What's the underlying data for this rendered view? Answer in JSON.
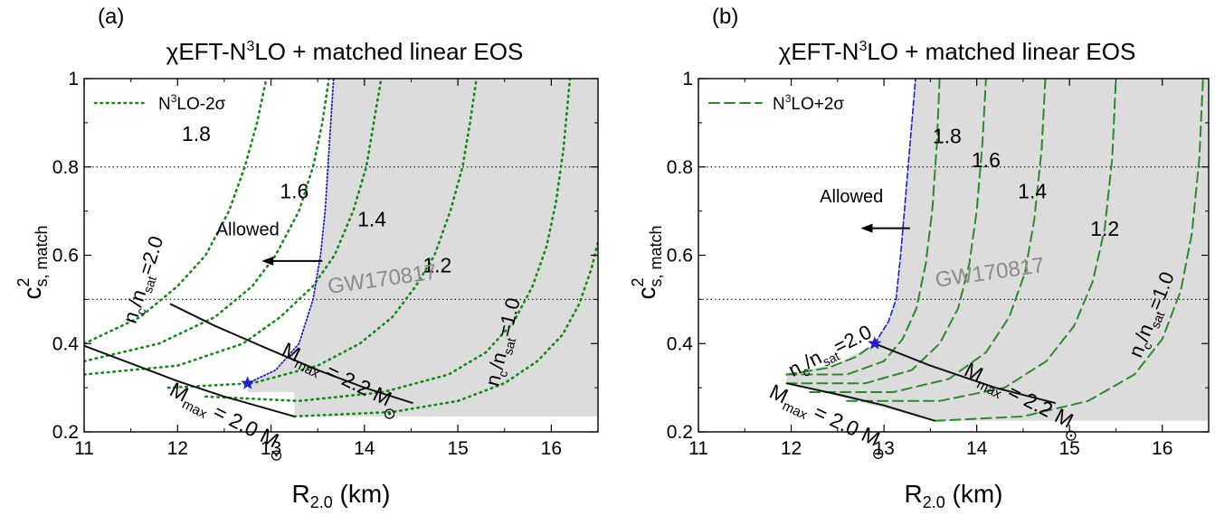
{
  "chart_data": [
    {
      "type": "line",
      "panel_label": "(a)",
      "title_pre": "χEFT-N",
      "title_sup": "3",
      "title_post": "LO + matched linear EOS",
      "xlabel_main": "R",
      "xlabel_sub": "2.0",
      "xlabel_unit": " (km)",
      "ylabel_main": "c",
      "ylabel_sup": "2",
      "ylabel_sub": "s, match",
      "xlim": [
        11,
        16.5
      ],
      "ylim": [
        0.2,
        1.0
      ],
      "xticks": [
        "11",
        "12",
        "13",
        "14",
        "15",
        "16"
      ],
      "xtick_values": [
        11,
        12,
        13,
        14,
        15,
        16
      ],
      "yticks": [
        "0.2",
        "0.4",
        "0.6",
        "0.8",
        "1"
      ],
      "ytick_values": [
        0.2,
        0.4,
        0.6,
        0.8,
        1.0
      ],
      "hlines": [
        0.5,
        0.8
      ],
      "legend": {
        "pre": "N",
        "sup": "3",
        "post": "LO-2σ",
        "style": "dotted",
        "position": "top-left"
      },
      "excluded_region_label": "GW170817",
      "allowed_label": "Allowed",
      "star": {
        "x": 12.75,
        "y": 0.31
      },
      "boundary_curve": [
        [
          12.75,
          0.31
        ],
        [
          13.05,
          0.34
        ],
        [
          13.3,
          0.4
        ],
        [
          13.45,
          0.5
        ],
        [
          13.53,
          0.6
        ],
        [
          13.58,
          0.7
        ],
        [
          13.61,
          0.8
        ],
        [
          13.64,
          0.9
        ],
        [
          13.67,
          1.0
        ]
      ],
      "shaded_region": [
        [
          12.75,
          0.31
        ],
        [
          13.05,
          0.34
        ],
        [
          13.3,
          0.4
        ],
        [
          13.45,
          0.5
        ],
        [
          13.53,
          0.6
        ],
        [
          13.58,
          0.7
        ],
        [
          13.61,
          0.8
        ],
        [
          13.64,
          0.9
        ],
        [
          13.67,
          1.0
        ],
        [
          16.5,
          1.0
        ],
        [
          16.5,
          0.235
        ],
        [
          13.25,
          0.235
        ],
        [
          13.25,
          0.29
        ],
        [
          12.75,
          0.29
        ]
      ],
      "nc_curves": [
        {
          "label": "2.0",
          "points": [
            [
              11.0,
              0.4
            ],
            [
              11.6,
              0.46
            ],
            [
              12.0,
              0.53
            ],
            [
              12.3,
              0.6
            ],
            [
              12.55,
              0.7
            ],
            [
              12.72,
              0.8
            ],
            [
              12.85,
              0.9
            ],
            [
              12.95,
              1.0
            ]
          ]
        },
        {
          "label": "1.8",
          "points": [
            [
              11.0,
              0.36
            ],
            [
              11.8,
              0.4
            ],
            [
              12.4,
              0.46
            ],
            [
              12.8,
              0.53
            ],
            [
              13.05,
              0.6
            ],
            [
              13.3,
              0.7
            ],
            [
              13.45,
              0.8
            ],
            [
              13.55,
              0.9
            ],
            [
              13.62,
              1.0
            ]
          ]
        },
        {
          "label": "1.6",
          "points": [
            [
              11.0,
              0.33
            ],
            [
              12.0,
              0.35
            ],
            [
              12.7,
              0.4
            ],
            [
              13.1,
              0.46
            ],
            [
              13.45,
              0.53
            ],
            [
              13.68,
              0.6
            ],
            [
              13.88,
              0.7
            ],
            [
              14.02,
              0.8
            ],
            [
              14.1,
              0.9
            ],
            [
              14.18,
              1.0
            ]
          ]
        },
        {
          "label": "1.4",
          "points": [
            [
              11.9,
              0.3
            ],
            [
              12.8,
              0.31
            ],
            [
              13.5,
              0.35
            ],
            [
              13.95,
              0.4
            ],
            [
              14.3,
              0.46
            ],
            [
              14.55,
              0.53
            ],
            [
              14.75,
              0.6
            ],
            [
              14.92,
              0.7
            ],
            [
              15.05,
              0.8
            ],
            [
              15.13,
              0.9
            ],
            [
              15.2,
              1.0
            ]
          ]
        },
        {
          "label": "1.2",
          "points": [
            [
              12.3,
              0.28
            ],
            [
              13.3,
              0.27
            ],
            [
              14.2,
              0.29
            ],
            [
              14.9,
              0.33
            ],
            [
              15.3,
              0.38
            ],
            [
              15.6,
              0.45
            ],
            [
              15.8,
              0.53
            ],
            [
              15.95,
              0.62
            ],
            [
              16.05,
              0.72
            ],
            [
              16.13,
              0.84
            ],
            [
              16.2,
              1.0
            ]
          ]
        },
        {
          "label": "1.0",
          "points": [
            [
              13.25,
              0.235
            ],
            [
              14.3,
              0.245
            ],
            [
              15.0,
              0.27
            ],
            [
              15.5,
              0.31
            ],
            [
              15.85,
              0.36
            ],
            [
              16.12,
              0.42
            ],
            [
              16.3,
              0.49
            ],
            [
              16.43,
              0.57
            ],
            [
              16.5,
              0.63
            ]
          ]
        }
      ],
      "curve_labels": [
        {
          "text": "1.8",
          "x": 12.2,
          "y": 0.875
        },
        {
          "text": "1.6",
          "x": 13.25,
          "y": 0.745
        },
        {
          "text": "1.4",
          "x": 14.08,
          "y": 0.682
        },
        {
          "text": "1.2",
          "x": 14.78,
          "y": 0.577
        }
      ],
      "nc_label_2": {
        "pre": "n",
        "sub1": "c",
        "mid": "/n",
        "sub2": "sat",
        "post": "=2.0",
        "x": 11.7,
        "y": 0.54,
        "angle": -72
      },
      "nc_label_1": {
        "pre": "n",
        "sub1": "c",
        "mid": "/n",
        "sub2": "sat",
        "post": "=1.0",
        "x": 15.55,
        "y": 0.4,
        "angle": -76
      },
      "mmax_curves": [
        {
          "pre": "M",
          "sub": "max",
          "post": " = 2.0 M",
          "points": [
            [
              11.0,
              0.395
            ],
            [
              11.5,
              0.355
            ],
            [
              12.0,
              0.315
            ],
            [
              12.5,
              0.28
            ],
            [
              13.0,
              0.25
            ],
            [
              13.25,
              0.235
            ]
          ],
          "label_x": 11.9,
          "label_y": 0.285,
          "angle": 27
        },
        {
          "pre": "M",
          "sub": "max",
          "post": " = 2.2 M",
          "points": [
            [
              11.92,
              0.49
            ],
            [
              12.4,
              0.44
            ],
            [
              13.0,
              0.385
            ],
            [
              13.5,
              0.34
            ],
            [
              14.0,
              0.3
            ],
            [
              14.52,
              0.265
            ]
          ],
          "label_x": 13.1,
          "label_y": 0.375,
          "angle": 26
        }
      ]
    },
    {
      "type": "line",
      "panel_label": "(b)",
      "title_pre": "χEFT-N",
      "title_sup": "3",
      "title_post": "LO + matched linear EOS",
      "xlabel_main": "R",
      "xlabel_sub": "2.0",
      "xlabel_unit": " (km)",
      "ylabel_main": "c",
      "ylabel_sup": "2",
      "ylabel_sub": "s, match",
      "xlim": [
        11,
        16.5
      ],
      "ylim": [
        0.2,
        1.0
      ],
      "xticks": [
        "11",
        "12",
        "13",
        "14",
        "15",
        "16"
      ],
      "xtick_values": [
        11,
        12,
        13,
        14,
        15,
        16
      ],
      "yticks": [
        "0.2",
        "0.4",
        "0.6",
        "0.8",
        "1"
      ],
      "ytick_values": [
        0.2,
        0.4,
        0.6,
        0.8,
        1.0
      ],
      "hlines": [
        0.5,
        0.8
      ],
      "legend": {
        "pre": "N",
        "sup": "3",
        "post": "LO+2σ",
        "style": "dashed",
        "position": "top-left"
      },
      "excluded_region_label": "GW170817",
      "allowed_label": "Allowed",
      "star": {
        "x": 12.9,
        "y": 0.4
      },
      "boundary_curve": [
        [
          12.9,
          0.4
        ],
        [
          13.05,
          0.45
        ],
        [
          13.13,
          0.5
        ],
        [
          13.18,
          0.6
        ],
        [
          13.22,
          0.7
        ],
        [
          13.26,
          0.8
        ],
        [
          13.3,
          0.9
        ],
        [
          13.34,
          1.0
        ]
      ],
      "shaded_region": [
        [
          11.95,
          0.33
        ],
        [
          12.5,
          0.355
        ],
        [
          12.9,
          0.4
        ],
        [
          13.05,
          0.45
        ],
        [
          13.13,
          0.5
        ],
        [
          13.18,
          0.6
        ],
        [
          13.22,
          0.7
        ],
        [
          13.26,
          0.8
        ],
        [
          13.3,
          0.9
        ],
        [
          13.34,
          1.0
        ],
        [
          16.5,
          1.0
        ],
        [
          16.5,
          0.225
        ],
        [
          13.55,
          0.225
        ],
        [
          11.95,
          0.31
        ]
      ],
      "nc_curves": [
        {
          "label": "2.0",
          "points": [
            [
              11.95,
              0.33
            ],
            [
              12.4,
              0.345
            ],
            [
              12.7,
              0.37
            ],
            [
              12.9,
              0.4
            ]
          ]
        },
        {
          "label": "1.8",
          "points": [
            [
              11.95,
              0.33
            ],
            [
              12.6,
              0.33
            ],
            [
              13.0,
              0.36
            ],
            [
              13.2,
              0.41
            ],
            [
              13.35,
              0.48
            ],
            [
              13.45,
              0.58
            ],
            [
              13.52,
              0.7
            ],
            [
              13.57,
              0.85
            ],
            [
              13.6,
              1.0
            ]
          ]
        },
        {
          "label": "1.6",
          "points": [
            [
              11.95,
              0.31
            ],
            [
              12.8,
              0.31
            ],
            [
              13.3,
              0.34
            ],
            [
              13.6,
              0.4
            ],
            [
              13.8,
              0.48
            ],
            [
              13.92,
              0.58
            ],
            [
              14.0,
              0.7
            ],
            [
              14.06,
              0.85
            ],
            [
              14.1,
              1.0
            ]
          ]
        },
        {
          "label": "1.4",
          "points": [
            [
              12.2,
              0.29
            ],
            [
              13.1,
              0.29
            ],
            [
              13.7,
              0.32
            ],
            [
              14.1,
              0.38
            ],
            [
              14.35,
              0.46
            ],
            [
              14.52,
              0.56
            ],
            [
              14.62,
              0.68
            ],
            [
              14.7,
              0.84
            ],
            [
              14.74,
              1.0
            ]
          ]
        },
        {
          "label": "1.2",
          "points": [
            [
              12.6,
              0.27
            ],
            [
              13.6,
              0.27
            ],
            [
              14.3,
              0.3
            ],
            [
              14.75,
              0.36
            ],
            [
              15.05,
              0.44
            ],
            [
              15.25,
              0.54
            ],
            [
              15.38,
              0.66
            ],
            [
              15.46,
              0.82
            ],
            [
              15.5,
              1.0
            ]
          ]
        },
        {
          "label": "1.0",
          "points": [
            [
              13.55,
              0.225
            ],
            [
              14.5,
              0.235
            ],
            [
              15.2,
              0.27
            ],
            [
              15.7,
              0.33
            ],
            [
              16.0,
              0.41
            ],
            [
              16.2,
              0.52
            ],
            [
              16.32,
              0.65
            ],
            [
              16.4,
              0.82
            ],
            [
              16.44,
              1.0
            ]
          ]
        }
      ],
      "curve_labels": [
        {
          "text": "1.8",
          "x": 13.68,
          "y": 0.87
        },
        {
          "text": "1.6",
          "x": 14.1,
          "y": 0.816
        },
        {
          "text": "1.4",
          "x": 14.6,
          "y": 0.745
        },
        {
          "text": "1.2",
          "x": 15.38,
          "y": 0.66
        }
      ],
      "nc_label_2": {
        "pre": "n",
        "sub1": "c",
        "mid": "/n",
        "sub2": "sat",
        "post": "=2.0",
        "x": 12.45,
        "y": 0.37,
        "angle": -27
      },
      "nc_label_1": {
        "pre": "n",
        "sub1": "c",
        "mid": "/n",
        "sub2": "sat",
        "post": "=1.0",
        "x": 15.95,
        "y": 0.46,
        "angle": -68
      },
      "mmax_curves": [
        {
          "pre": "M",
          "sub": "max",
          "post": " = 2.0 M",
          "points": [
            [
              11.95,
              0.31
            ],
            [
              12.5,
              0.285
            ],
            [
              13.0,
              0.26
            ],
            [
              13.55,
              0.225
            ]
          ],
          "label_x": 11.75,
          "label_y": 0.28,
          "angle": 25
        },
        {
          "pre": "M",
          "sub": "max",
          "post": " = 2.2 M",
          "points": [
            [
              12.9,
              0.4
            ],
            [
              13.5,
              0.35
            ],
            [
              14.2,
              0.3
            ],
            [
              14.85,
              0.265
            ]
          ],
          "label_x": 13.85,
          "label_y": 0.33,
          "angle": 27
        }
      ]
    }
  ]
}
